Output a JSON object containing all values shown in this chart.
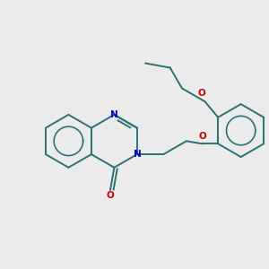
{
  "bg_color": "#ebebeb",
  "bond_color": "#2d7070",
  "n_color": "#0000cc",
  "o_color": "#cc0000",
  "bond_width": 1.4,
  "figsize": [
    3.0,
    3.0
  ],
  "dpi": 100,
  "xlim": [
    -2.5,
    7.5
  ],
  "ylim": [
    -3.5,
    4.0
  ]
}
